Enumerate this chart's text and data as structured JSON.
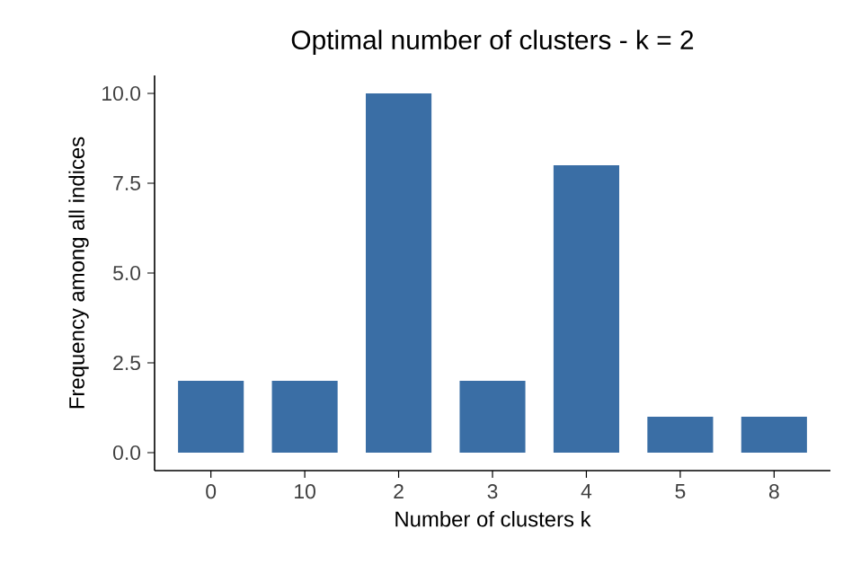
{
  "chart_data": {
    "type": "bar",
    "title": "Optimal number of clusters - k = 2",
    "xlabel": "Number of clusters k",
    "ylabel": "Frequency among all indices",
    "categories": [
      "0",
      "10",
      "2",
      "3",
      "4",
      "5",
      "8"
    ],
    "values": [
      2,
      2,
      10,
      2,
      8,
      1,
      1
    ],
    "color": "#3a6ea5",
    "ylim": [
      -0.5,
      10.5
    ],
    "yticks": [
      {
        "value": 0,
        "label": "0.0"
      },
      {
        "value": 2.5,
        "label": "2.5"
      },
      {
        "value": 5,
        "label": "5.0"
      },
      {
        "value": 7.5,
        "label": "7.5"
      },
      {
        "value": 10,
        "label": "10.0"
      }
    ]
  }
}
